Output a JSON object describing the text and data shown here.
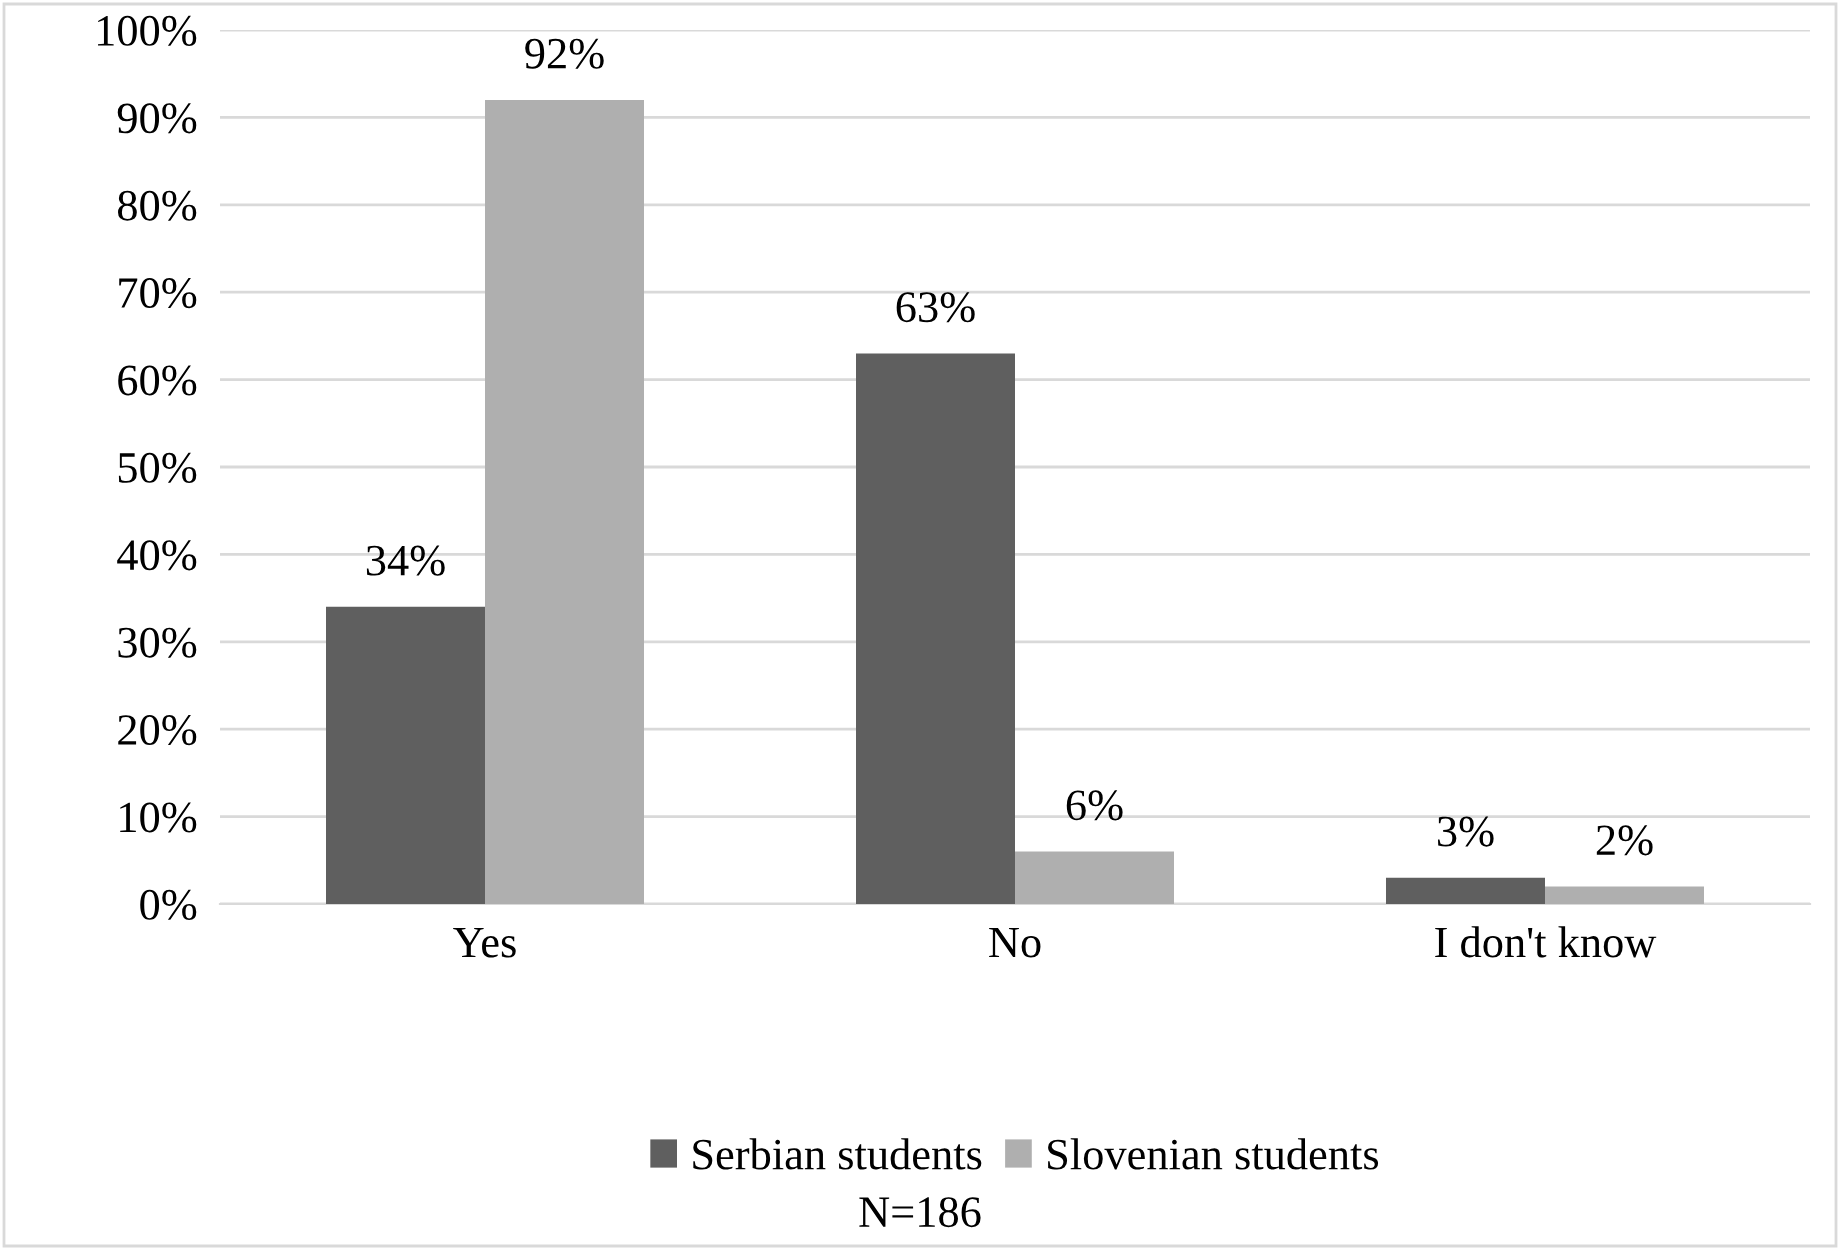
{
  "chart_data": {
    "type": "bar",
    "categories": [
      "Yes",
      "No",
      "I don't know"
    ],
    "series": [
      {
        "name": "Serbian students",
        "color": "#5f5f5f",
        "values": [
          34,
          63,
          3
        ],
        "value_labels": [
          "34%",
          "63%",
          "3%"
        ]
      },
      {
        "name": "Slovenian students",
        "color": "#afafaf",
        "values": [
          92,
          6,
          2
        ],
        "value_labels": [
          "92%",
          "6%",
          "2%"
        ]
      }
    ],
    "ylim": [
      0,
      100
    ],
    "yticks": [
      {
        "value": 0,
        "label": "0%"
      },
      {
        "value": 10,
        "label": "10%"
      },
      {
        "value": 20,
        "label": "20%"
      },
      {
        "value": 30,
        "label": "30%"
      },
      {
        "value": 40,
        "label": "40%"
      },
      {
        "value": 50,
        "label": "50%"
      },
      {
        "value": 60,
        "label": "60%"
      },
      {
        "value": 70,
        "label": "70%"
      },
      {
        "value": 80,
        "label": "80%"
      },
      {
        "value": 90,
        "label": "90%"
      },
      {
        "value": 100,
        "label": "100%"
      }
    ],
    "grid": "y",
    "legend": "bottom",
    "annotations": [
      "N=186"
    ]
  }
}
